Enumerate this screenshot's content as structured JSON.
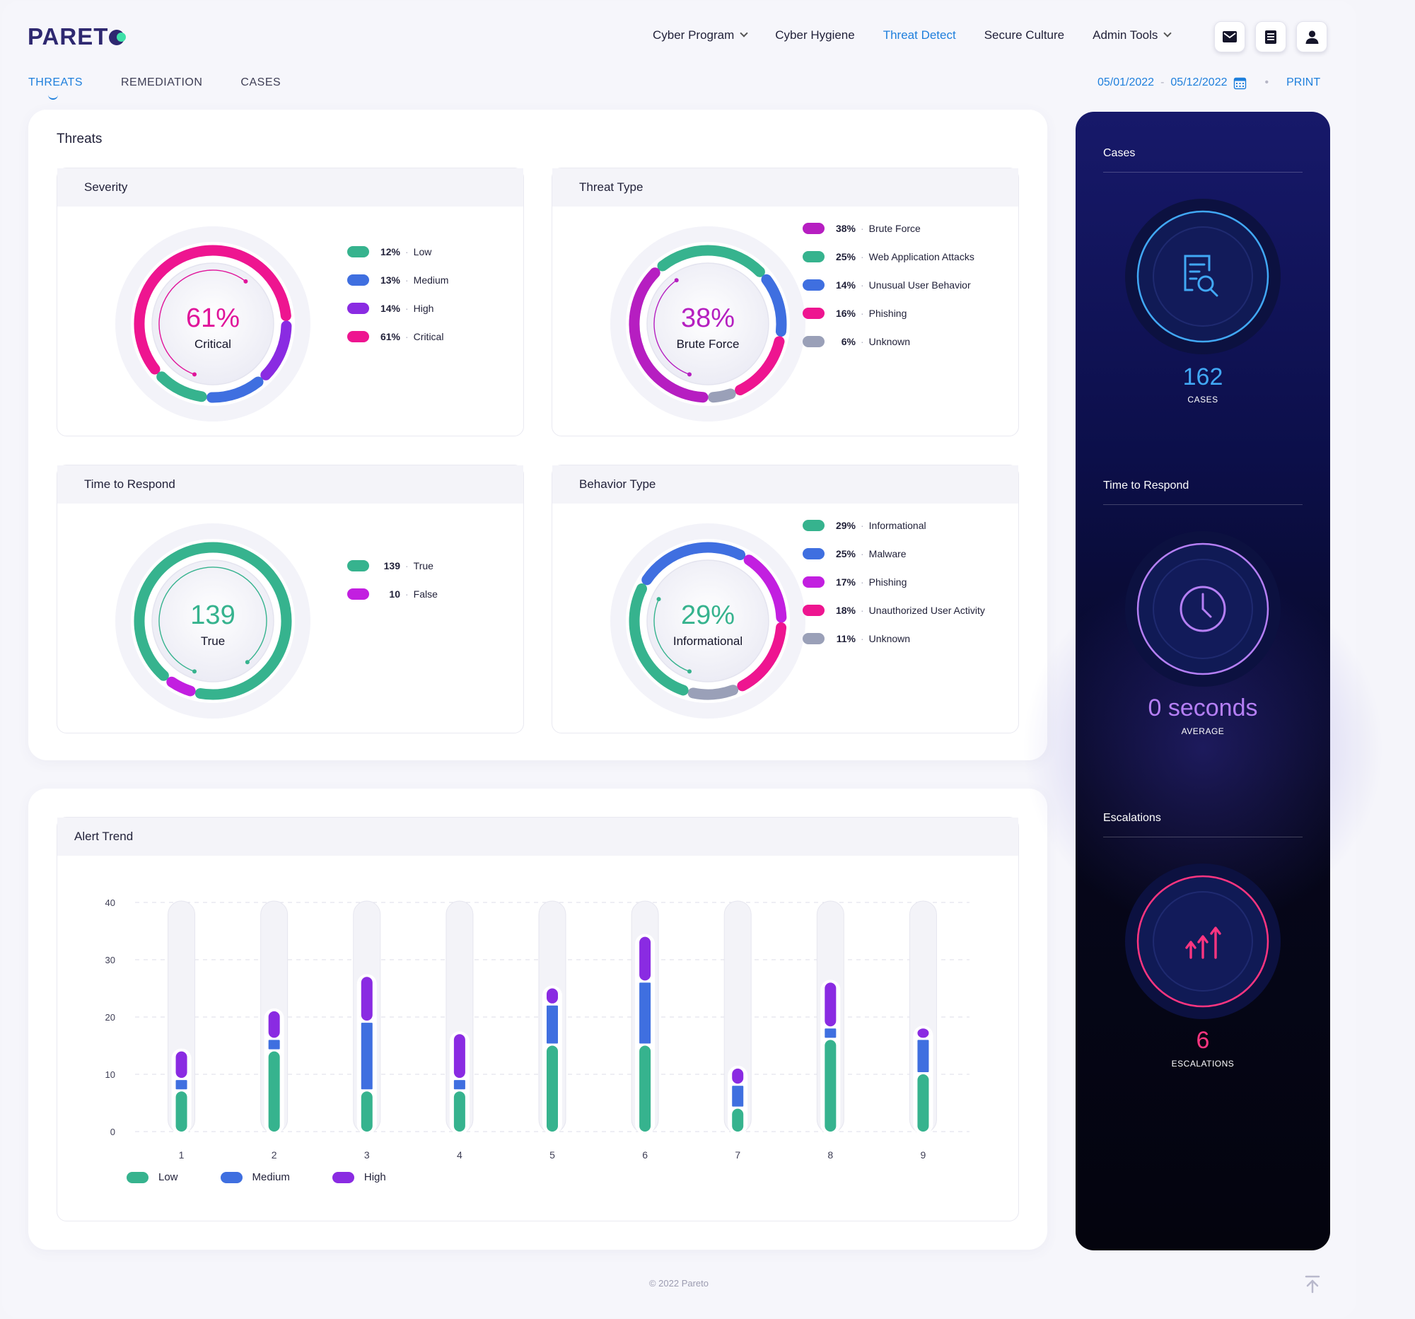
{
  "brand": {
    "logo_text": "PARET"
  },
  "topnav": [
    {
      "label": "Cyber Program",
      "dropdown": true,
      "active": false
    },
    {
      "label": "Cyber Hygiene",
      "dropdown": false,
      "active": false
    },
    {
      "label": "Threat Detect",
      "dropdown": false,
      "active": true
    },
    {
      "label": "Secure Culture",
      "dropdown": false,
      "active": false
    },
    {
      "label": "Admin Tools",
      "dropdown": true,
      "active": false
    }
  ],
  "header_icons": [
    "mail-icon",
    "document-icon",
    "user-icon"
  ],
  "subtabs": [
    {
      "label": "THREATS",
      "active": true
    },
    {
      "label": "REMEDIATION",
      "active": false
    },
    {
      "label": "CASES",
      "active": false
    }
  ],
  "date_range": {
    "start": "05/01/2022",
    "separator": "-",
    "end": "05/12/2022",
    "print_label": "PRINT"
  },
  "threats_card": {
    "title": "Threats"
  },
  "severity": {
    "title": "Severity",
    "center_value": "61%",
    "center_label": "Critical",
    "center_color": "#e0149a",
    "legend": [
      {
        "pct": "12%",
        "label": "Low",
        "value": 12,
        "color": "#36b38e"
      },
      {
        "pct": "13%",
        "label": "Medium",
        "value": 13,
        "color": "#3f6fe0"
      },
      {
        "pct": "14%",
        "label": "High",
        "value": 14,
        "color": "#8a2be2"
      },
      {
        "pct": "61%",
        "label": "Critical",
        "value": 61,
        "color": "#ee1590"
      }
    ]
  },
  "threat_type": {
    "title": "Threat Type",
    "center_value": "38%",
    "center_label": "Brute Force",
    "center_color": "#b51fc0",
    "legend": [
      {
        "pct": "38%",
        "label": "Brute Force",
        "value": 38,
        "color": "#b61ec1"
      },
      {
        "pct": "25%",
        "label": "Web Application Attacks",
        "value": 25,
        "color": "#36b38e"
      },
      {
        "pct": "14%",
        "label": "Unusual User Behavior",
        "value": 14,
        "color": "#3f6fe0"
      },
      {
        "pct": "16%",
        "label": "Phishing",
        "value": 16,
        "color": "#ee1590"
      },
      {
        "pct": "6%",
        "label": "Unknown",
        "value": 6,
        "color": "#9aa0b8"
      }
    ]
  },
  "time_to_respond": {
    "title": "Time to Respond",
    "center_value": "139",
    "center_label": "True",
    "center_color": "#36b38e",
    "legend": [
      {
        "pct": "139",
        "label": "True",
        "value": 139,
        "color": "#36b38e"
      },
      {
        "pct": "10",
        "label": "False",
        "value": 10,
        "color": "#c21fe0"
      }
    ]
  },
  "behavior_type": {
    "title": "Behavior Type",
    "center_value": "29%",
    "center_label": "Informational",
    "center_color": "#36b38e",
    "legend": [
      {
        "pct": "29%",
        "label": "Informational",
        "value": 29,
        "color": "#36b38e"
      },
      {
        "pct": "25%",
        "label": "Malware",
        "value": 25,
        "color": "#3f6fe0"
      },
      {
        "pct": "17%",
        "label": "Phishing",
        "value": 17,
        "color": "#c21fe0"
      },
      {
        "pct": "18%",
        "label": "Unauthorized User Activity",
        "value": 18,
        "color": "#ee1590"
      },
      {
        "pct": "11%",
        "label": "Unknown",
        "value": 11,
        "color": "#9aa0b8"
      }
    ]
  },
  "chart_data": {
    "type": "bar",
    "title": "Alert Trend",
    "stacked": true,
    "categories": [
      "1",
      "2",
      "3",
      "4",
      "5",
      "6",
      "7",
      "8",
      "9"
    ],
    "ylim": [
      0,
      40
    ],
    "yticks": [
      "0",
      "10",
      "20",
      "30",
      "40"
    ],
    "grid": true,
    "legend_position": "bottom-left",
    "series": [
      {
        "name": "Low",
        "color": "#36b38e",
        "values": [
          7,
          14,
          7,
          7,
          15,
          15,
          4,
          16,
          10
        ]
      },
      {
        "name": "Medium",
        "color": "#3f6fe0",
        "values": [
          2,
          2,
          12,
          2,
          7,
          11,
          4,
          2,
          6
        ]
      },
      {
        "name": "High",
        "color": "#8a2be2",
        "values": [
          5,
          5,
          8,
          8,
          3,
          8,
          3,
          8,
          2
        ]
      }
    ]
  },
  "side": {
    "cases": {
      "title": "Cases",
      "value": "162",
      "caption": "CASES",
      "icon": "case-search-icon",
      "color": "#41a8f5"
    },
    "time_to_respond": {
      "title": "Time to Respond",
      "value": "0 seconds",
      "caption": "AVERAGE",
      "icon": "clock-icon",
      "color": "#b57ff5"
    },
    "escalations": {
      "title": "Escalations",
      "value": "6",
      "caption": "ESCALATIONS",
      "icon": "escalation-arrows-icon",
      "color": "#ff3580"
    }
  },
  "footer": {
    "text": "© 2022 Pareto"
  }
}
